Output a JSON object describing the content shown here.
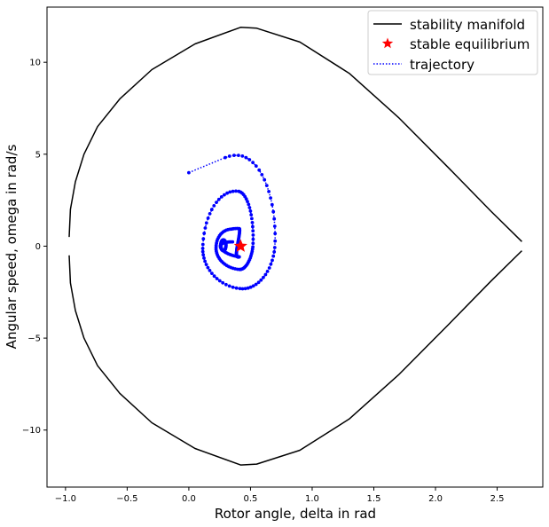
{
  "chart_data": {
    "type": "line",
    "xlabel": "Rotor angle, delta in rad",
    "ylabel": "Angular speed, omega in rad/s",
    "xlim": [
      -1.15,
      2.87
    ],
    "ylim": [
      -13.1,
      13.0
    ],
    "x_ticks": [
      -1.0,
      -0.5,
      0.0,
      0.5,
      1.0,
      1.5,
      2.0,
      2.5
    ],
    "x_tick_labels": [
      "−1.0",
      "−0.5",
      "0.0",
      "0.5",
      "1.0",
      "1.5",
      "2.0",
      "2.5"
    ],
    "y_ticks": [
      -10,
      -5,
      0,
      5,
      10
    ],
    "y_tick_labels": [
      "−10",
      "−5",
      "0",
      "5",
      "10"
    ],
    "grid": false,
    "legend_position": "top-right",
    "series": [
      {
        "name": "stability manifold",
        "style": "solid line",
        "color": "#000000",
        "upper": [
          [
            -0.97,
            0.5
          ],
          [
            -0.96,
            2.0
          ],
          [
            -0.92,
            3.5
          ],
          [
            -0.85,
            5.0
          ],
          [
            -0.74,
            6.5
          ],
          [
            -0.56,
            8.0
          ],
          [
            -0.3,
            9.6
          ],
          [
            0.05,
            11.0
          ],
          [
            0.42,
            11.9
          ],
          [
            0.55,
            11.85
          ],
          [
            0.9,
            11.1
          ],
          [
            1.3,
            9.4
          ],
          [
            1.7,
            7.0
          ],
          [
            2.1,
            4.3
          ],
          [
            2.45,
            1.9
          ],
          [
            2.7,
            0.25
          ]
        ],
        "lower": [
          [
            -0.97,
            -0.5
          ],
          [
            -0.96,
            -2.0
          ],
          [
            -0.92,
            -3.5
          ],
          [
            -0.85,
            -5.0
          ],
          [
            -0.74,
            -6.5
          ],
          [
            -0.56,
            -8.0
          ],
          [
            -0.3,
            -9.6
          ],
          [
            0.05,
            -11.0
          ],
          [
            0.42,
            -11.9
          ],
          [
            0.55,
            -11.85
          ],
          [
            0.9,
            -11.1
          ],
          [
            1.3,
            -9.4
          ],
          [
            1.7,
            -7.0
          ],
          [
            2.1,
            -4.3
          ],
          [
            2.45,
            -1.9
          ],
          [
            2.7,
            -0.25
          ]
        ]
      },
      {
        "name": "stable equilibrium",
        "style": "star marker",
        "color": "#ff0000",
        "x": [
          0.42
        ],
        "y": [
          0.0
        ]
      },
      {
        "name": "trajectory",
        "style": "dotted line with dot markers",
        "color": "#0000ff",
        "spiral": {
          "center": [
            0.41,
            0.0
          ],
          "start_point": [
            0.0,
            4.0
          ],
          "lobes": [
            {
              "x_min": 0.0,
              "x_max": 0.76,
              "y_min": -3.2,
              "y_max": 5.05
            },
            {
              "x_min": 0.14,
              "x_max": 0.56,
              "y_min": -1.6,
              "y_max": 3.1
            },
            {
              "x_min": 0.24,
              "x_max": 0.43,
              "y_min": -1.0,
              "y_max": 1.0
            }
          ]
        }
      }
    ]
  }
}
